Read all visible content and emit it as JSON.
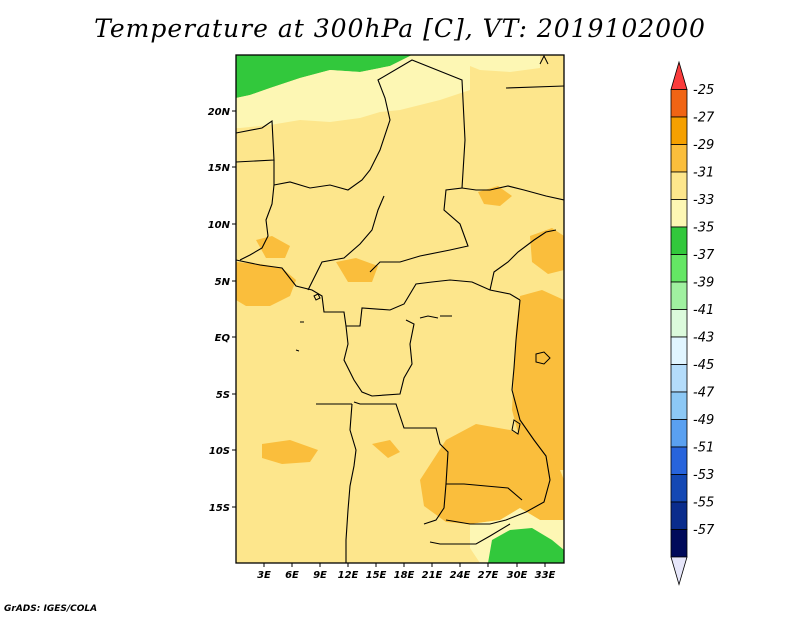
{
  "title": "Temperature at 300hPa [C], VT: 2019102000",
  "credit": "GrADS: IGES/COLA",
  "map": {
    "lon_ticks": [
      "3E",
      "6E",
      "9E",
      "12E",
      "15E",
      "18E",
      "21E",
      "24E",
      "27E",
      "30E",
      "33E"
    ],
    "lat_ticks": [
      "20N",
      "15N",
      "10N",
      "5N",
      "EQ",
      "5S",
      "10S",
      "15S"
    ]
  },
  "colorbar": {
    "labels": [
      "-25",
      "-27",
      "-29",
      "-31",
      "-33",
      "-35",
      "-37",
      "-39",
      "-41",
      "-43",
      "-45",
      "-47",
      "-49",
      "-51",
      "-53",
      "-55",
      "-57"
    ],
    "colors": [
      "#fa3c3c",
      "#f06414",
      "#f5a000",
      "#fabe3c",
      "#fde68c",
      "#fdf7b4",
      "#32c83c",
      "#64e664",
      "#a0f0a0",
      "#dcfadc",
      "#e1f5ff",
      "#b4dcfa",
      "#8cc8f5",
      "#5aa0f0",
      "#2864dc",
      "#1448b4",
      "#0a2c8c",
      "#000a5a",
      "#e6e6fa"
    ]
  }
}
